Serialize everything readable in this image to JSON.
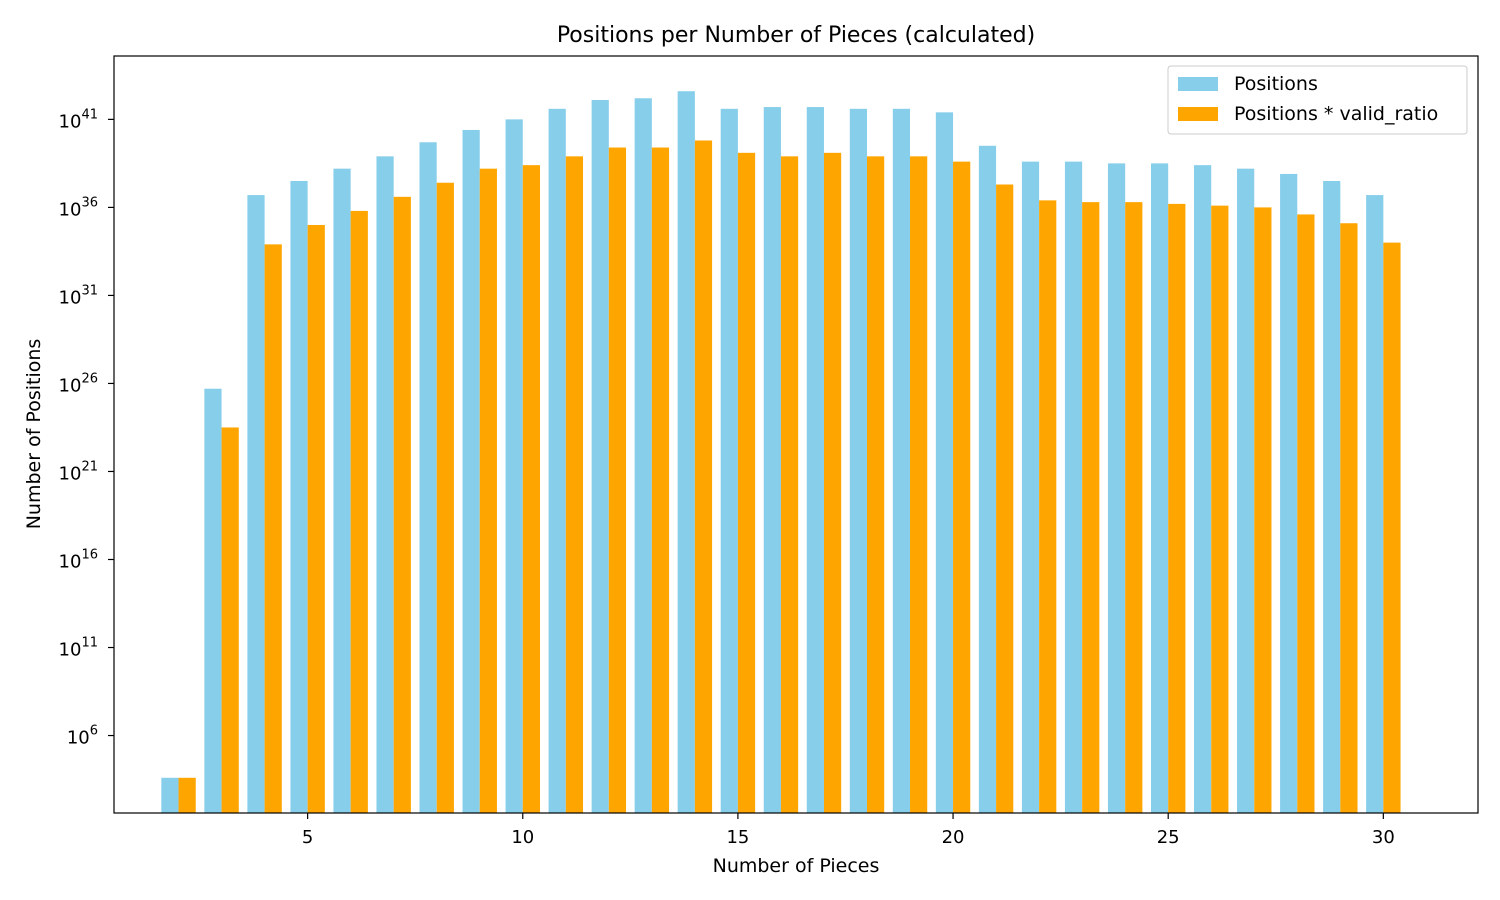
{
  "chart_data": {
    "type": "bar",
    "title": "Positions per Number of Pieces (calculated)",
    "xlabel": "Number of Pieces",
    "ylabel": "Number of Positions",
    "yscale": "log",
    "ylim_log10": [
      1.6,
      44.6
    ],
    "xlim": [
      0.5,
      32.2
    ],
    "x_ticks": [
      5,
      10,
      15,
      20,
      25,
      30
    ],
    "y_tick_exponents": [
      6,
      11,
      16,
      21,
      26,
      31,
      36,
      41
    ],
    "legend_position": "top-right",
    "grid": false,
    "x": [
      2,
      3,
      4,
      5,
      6,
      7,
      8,
      9,
      10,
      11,
      12,
      13,
      14,
      15,
      16,
      17,
      18,
      19,
      20,
      21,
      22,
      23,
      24,
      25,
      26,
      27,
      28,
      29,
      30
    ],
    "series": [
      {
        "name": "Positions",
        "color": "#87ceeb",
        "log10_values": [
          3.6,
          25.7,
          36.7,
          37.5,
          38.2,
          38.9,
          39.7,
          40.4,
          41.0,
          41.6,
          42.1,
          42.2,
          42.6,
          41.6,
          41.7,
          41.7,
          41.6,
          41.6,
          41.4,
          39.5,
          38.6,
          38.6,
          38.5,
          38.5,
          38.4,
          38.2,
          37.9,
          37.5,
          36.7
        ]
      },
      {
        "name": "Positions * valid_ratio",
        "color": "#ffa500",
        "log10_values": [
          3.6,
          23.5,
          33.9,
          35.0,
          35.8,
          36.6,
          37.4,
          38.2,
          38.4,
          38.9,
          39.4,
          39.4,
          39.8,
          39.1,
          38.9,
          39.1,
          38.9,
          38.9,
          38.6,
          37.3,
          36.4,
          36.3,
          36.3,
          36.2,
          36.1,
          36.0,
          35.6,
          35.1,
          34.0
        ]
      }
    ]
  }
}
